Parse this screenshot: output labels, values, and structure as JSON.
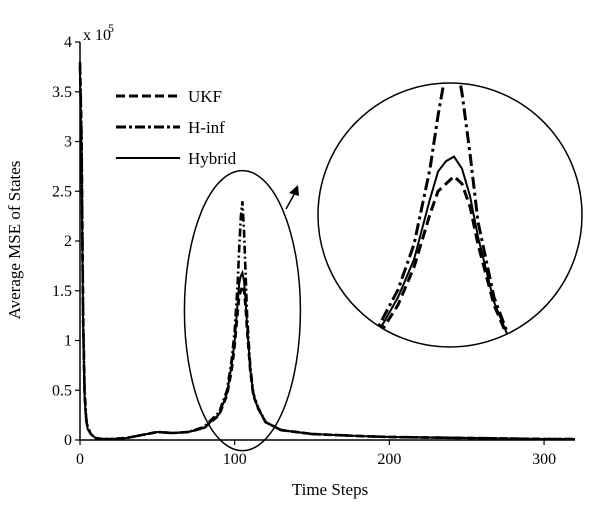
{
  "chart_data": {
    "type": "line",
    "title": "",
    "xlabel": "Time Steps",
    "ylabel": "Average MSE of  States",
    "y_multiplier": "x 10",
    "y_multiplier_exponent": "5",
    "xlim": [
      0,
      320
    ],
    "ylim": [
      0,
      4
    ],
    "x_ticks": [
      0,
      100,
      200,
      300
    ],
    "y_ticks": [
      0,
      0.5,
      1,
      1.5,
      2,
      2.5,
      3,
      3.5,
      4
    ],
    "x_tick_labels": [
      "0",
      "100",
      "200",
      "300"
    ],
    "y_tick_labels": [
      "0",
      "0.5",
      "1",
      "1.5",
      "2",
      "2.5",
      "3",
      "3.5",
      "4"
    ],
    "grid": false,
    "legend_position": "top-left",
    "inset": "zoomed view of the peak region around time step 105",
    "series": [
      {
        "name": "UKF",
        "style": "dashed",
        "x": [
          0,
          1,
          2,
          3,
          4,
          5,
          7,
          10,
          15,
          20,
          30,
          40,
          50,
          60,
          70,
          80,
          90,
          95,
          98,
          100,
          102,
          103,
          104,
          105,
          106,
          107,
          108,
          110,
          112,
          115,
          120,
          130,
          150,
          180,
          200,
          250,
          300,
          320
        ],
        "values": [
          3.75,
          3.0,
          1.2,
          0.45,
          0.2,
          0.12,
          0.06,
          0.02,
          0.01,
          0.01,
          0.02,
          0.05,
          0.08,
          0.07,
          0.08,
          0.12,
          0.25,
          0.45,
          0.7,
          0.95,
          1.3,
          1.45,
          1.5,
          1.55,
          1.5,
          1.35,
          1.1,
          0.7,
          0.45,
          0.32,
          0.18,
          0.1,
          0.06,
          0.04,
          0.03,
          0.02,
          0.01,
          0.01
        ]
      },
      {
        "name": "H-inf",
        "style": "dash-dot",
        "x": [
          0,
          1,
          2,
          3,
          4,
          5,
          7,
          10,
          15,
          20,
          30,
          40,
          50,
          60,
          70,
          80,
          90,
          95,
          98,
          100,
          102,
          103,
          104,
          105,
          106,
          107,
          108,
          110,
          112,
          115,
          120,
          130,
          150,
          180,
          200,
          250,
          300,
          320
        ],
        "values": [
          3.8,
          3.1,
          1.3,
          0.5,
          0.22,
          0.13,
          0.06,
          0.02,
          0.01,
          0.01,
          0.02,
          0.05,
          0.08,
          0.07,
          0.08,
          0.13,
          0.28,
          0.5,
          0.8,
          1.1,
          1.6,
          1.95,
          2.25,
          2.4,
          2.1,
          1.7,
          1.25,
          0.75,
          0.47,
          0.33,
          0.18,
          0.1,
          0.06,
          0.04,
          0.03,
          0.02,
          0.01,
          0.01
        ]
      },
      {
        "name": "Hybrid",
        "style": "solid",
        "x": [
          0,
          1,
          2,
          3,
          4,
          5,
          7,
          10,
          15,
          20,
          30,
          40,
          50,
          60,
          70,
          80,
          90,
          95,
          98,
          100,
          102,
          103,
          104,
          105,
          106,
          107,
          108,
          110,
          112,
          115,
          120,
          130,
          150,
          180,
          200,
          250,
          300,
          320
        ],
        "values": [
          3.7,
          2.9,
          1.15,
          0.43,
          0.19,
          0.11,
          0.06,
          0.02,
          0.01,
          0.01,
          0.02,
          0.05,
          0.08,
          0.07,
          0.08,
          0.12,
          0.26,
          0.47,
          0.75,
          1.0,
          1.4,
          1.58,
          1.65,
          1.68,
          1.6,
          1.42,
          1.15,
          0.72,
          0.46,
          0.32,
          0.18,
          0.1,
          0.06,
          0.04,
          0.03,
          0.02,
          0.01,
          0.01
        ]
      }
    ]
  }
}
